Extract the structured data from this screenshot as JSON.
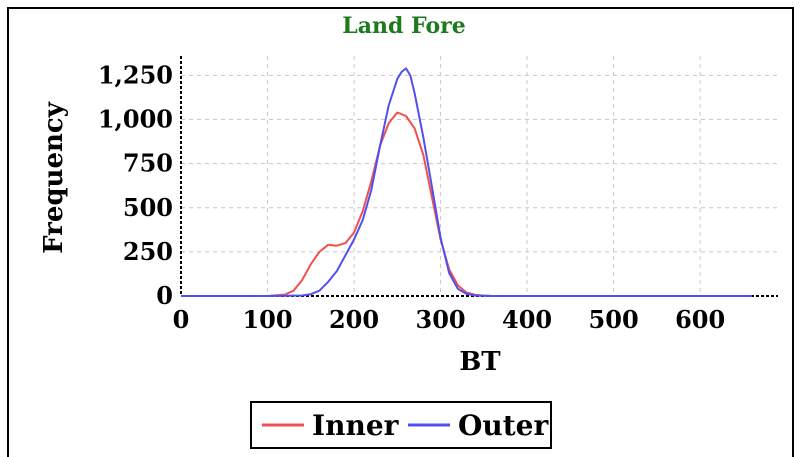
{
  "chart_data": {
    "type": "line",
    "title": "Land Fore",
    "xlabel": "BT",
    "ylabel": "Frequency",
    "xlim": [
      0,
      690
    ],
    "ylim": [
      0,
      1360
    ],
    "x_ticks": [
      0,
      100,
      200,
      300,
      400,
      500,
      600
    ],
    "y_ticks": [
      0,
      250,
      500,
      750,
      1000,
      1250
    ],
    "y_tick_labels": [
      "0",
      "250",
      "500",
      "750",
      "1,000",
      "1,250"
    ],
    "grid": true,
    "legend_position": "bottom",
    "series": [
      {
        "name": "Inner",
        "color": "#f05050",
        "x": [
          0,
          100,
          120,
          130,
          140,
          150,
          160,
          170,
          180,
          190,
          200,
          210,
          220,
          230,
          240,
          250,
          260,
          270,
          280,
          290,
          300,
          310,
          320,
          330,
          340,
          350,
          360,
          400,
          500,
          660
        ],
        "y": [
          0,
          0,
          8,
          30,
          90,
          180,
          250,
          290,
          285,
          300,
          360,
          480,
          650,
          850,
          980,
          1040,
          1020,
          950,
          800,
          560,
          320,
          150,
          60,
          20,
          6,
          2,
          0,
          0,
          0,
          0
        ]
      },
      {
        "name": "Outer",
        "color": "#5050f0",
        "x": [
          0,
          100,
          140,
          150,
          160,
          170,
          180,
          190,
          200,
          210,
          220,
          230,
          240,
          250,
          255,
          260,
          265,
          270,
          280,
          290,
          300,
          310,
          320,
          330,
          340,
          350,
          360,
          400,
          500,
          660
        ],
        "y": [
          0,
          0,
          3,
          10,
          30,
          80,
          140,
          230,
          320,
          430,
          600,
          850,
          1080,
          1230,
          1270,
          1290,
          1250,
          1150,
          900,
          620,
          330,
          130,
          40,
          12,
          3,
          1,
          0,
          0,
          0,
          0
        ]
      }
    ]
  }
}
